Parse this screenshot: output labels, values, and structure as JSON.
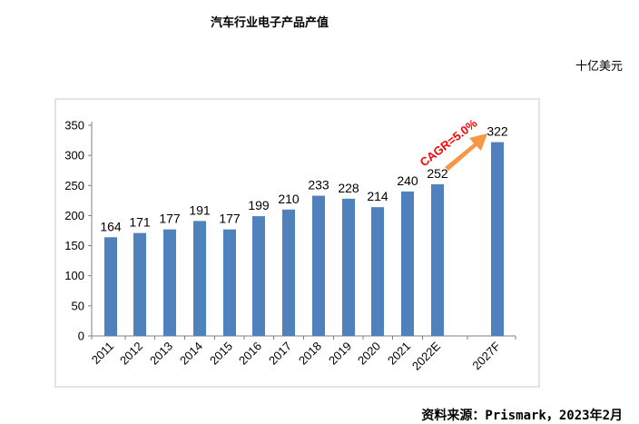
{
  "header": {
    "title": "汽车行业电子产品产值",
    "unit": "十亿美元"
  },
  "footer": {
    "source": "资料来源：Prismark，2023年2月"
  },
  "chart_data": {
    "type": "bar",
    "categories": [
      "2011",
      "2012",
      "2013",
      "2014",
      "2015",
      "2016",
      "2017",
      "2018",
      "2019",
      "2020",
      "2021",
      "2022E",
      "2027F"
    ],
    "values": [
      164,
      171,
      177,
      191,
      177,
      199,
      210,
      233,
      228,
      214,
      240,
      252,
      322
    ],
    "data_labels": [
      "164",
      "171",
      "177",
      "191",
      "177",
      "199",
      "210",
      "233",
      "228",
      "214",
      "240",
      "252",
      "322"
    ],
    "ylim": [
      0,
      350
    ],
    "yticks": [
      0,
      50,
      100,
      150,
      200,
      250,
      300,
      350
    ],
    "grid": false,
    "legend": "none",
    "bar_color": "#4f81bd",
    "annotation": {
      "text": "CAGR=5.0%",
      "from": "2022E",
      "to": "2027F",
      "text_color": "#ff0000",
      "arrow_color": "#f79646"
    }
  }
}
